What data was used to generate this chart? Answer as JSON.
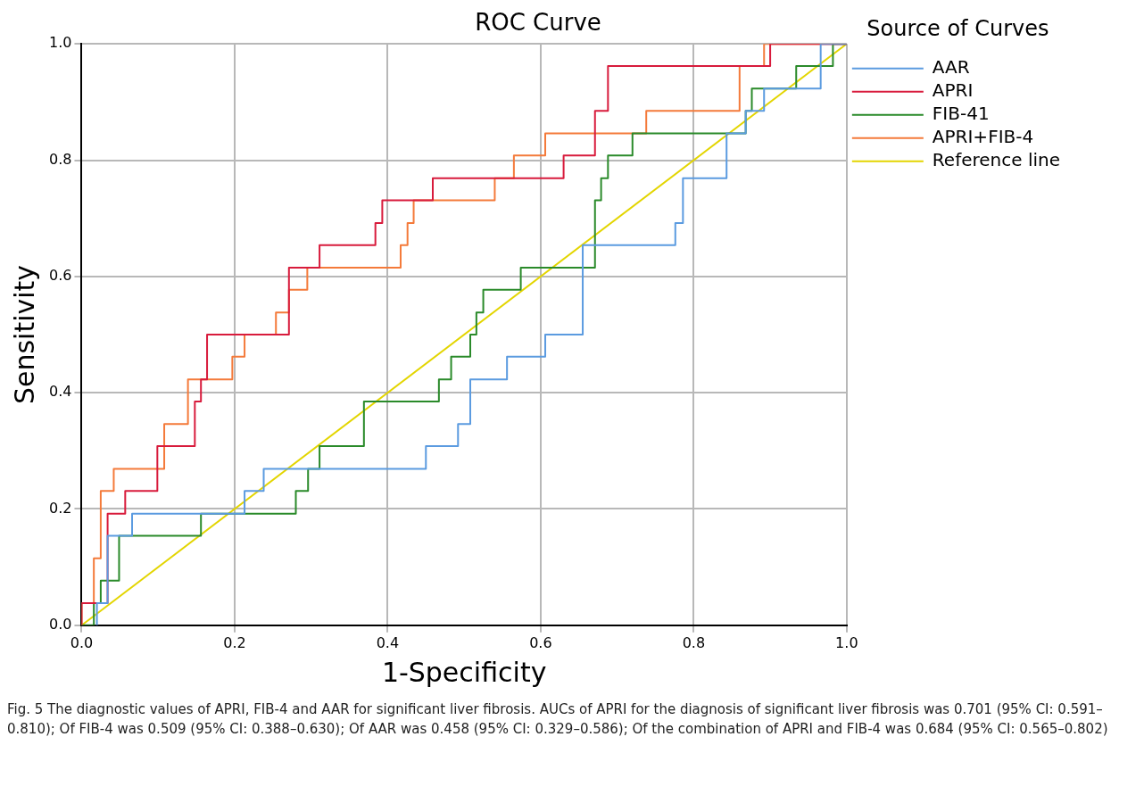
{
  "chart_data": {
    "type": "line",
    "title": "ROC Curve",
    "xlabel": "1-Specificity",
    "ylabel": "Sensitivity",
    "legend_title": "Source of Curves",
    "xlim": [
      0,
      1
    ],
    "ylim": [
      0,
      1
    ],
    "xticks": [
      {
        "value": 0,
        "label": "0.0"
      },
      {
        "value": 0.2,
        "label": "0.2"
      },
      {
        "value": 0.4,
        "label": "0.4"
      },
      {
        "value": 0.6,
        "label": "0.6"
      },
      {
        "value": 0.8,
        "label": "0.8"
      },
      {
        "value": 1,
        "label": "1.0"
      }
    ],
    "yticks": [
      {
        "value": 0,
        "label": "0.0"
      },
      {
        "value": 0.2,
        "label": "0.2"
      },
      {
        "value": 0.4,
        "label": "0.4"
      },
      {
        "value": 0.6,
        "label": "0.6"
      },
      {
        "value": 0.8,
        "label": "0.8"
      },
      {
        "value": 1,
        "label": "1.0"
      }
    ],
    "grid": true,
    "legend": "right",
    "series": [
      {
        "name": "AAR",
        "color": "#5b9be0",
        "x": [
          0.02,
          0.02,
          0.034,
          0.034,
          0.066,
          0.066,
          0.213,
          0.213,
          0.238,
          0.238,
          0.45,
          0.45,
          0.492,
          0.492,
          0.508,
          0.508,
          0.556,
          0.556,
          0.606,
          0.606,
          0.655,
          0.655,
          0.776,
          0.776,
          0.786,
          0.786,
          0.843,
          0.843,
          0.868,
          0.868,
          0.892,
          0.892,
          0.966,
          0.966,
          1
        ],
        "values": [
          0,
          0.038,
          0.038,
          0.154,
          0.154,
          0.192,
          0.192,
          0.231,
          0.231,
          0.269,
          0.269,
          0.308,
          0.308,
          0.346,
          0.346,
          0.423,
          0.423,
          0.462,
          0.462,
          0.5,
          0.5,
          0.654,
          0.654,
          0.692,
          0.692,
          0.769,
          0.769,
          0.846,
          0.846,
          0.885,
          0.885,
          0.923,
          0.923,
          1,
          1
        ]
      },
      {
        "name": "APRI",
        "color": "#d81b3c",
        "x": [
          0,
          0,
          0.034,
          0.034,
          0.057,
          0.057,
          0.099,
          0.099,
          0.148,
          0.148,
          0.156,
          0.156,
          0.164,
          0.164,
          0.271,
          0.271,
          0.311,
          0.311,
          0.384,
          0.384,
          0.393,
          0.393,
          0.459,
          0.459,
          0.63,
          0.63,
          0.671,
          0.671,
          0.688,
          0.688,
          0.9,
          0.9,
          1
        ],
        "values": [
          0,
          0.038,
          0.038,
          0.192,
          0.192,
          0.231,
          0.231,
          0.308,
          0.308,
          0.385,
          0.385,
          0.423,
          0.423,
          0.5,
          0.5,
          0.615,
          0.615,
          0.654,
          0.654,
          0.692,
          0.692,
          0.731,
          0.731,
          0.769,
          0.769,
          0.808,
          0.808,
          0.885,
          0.885,
          0.962,
          0.962,
          1,
          1
        ]
      },
      {
        "name": "FIB-41",
        "color": "#2a8a2a",
        "x": [
          0,
          0.016,
          0.016,
          0.025,
          0.025,
          0.049,
          0.049,
          0.156,
          0.156,
          0.28,
          0.28,
          0.296,
          0.296,
          0.311,
          0.311,
          0.369,
          0.369,
          0.467,
          0.467,
          0.483,
          0.483,
          0.508,
          0.508,
          0.516,
          0.516,
          0.525,
          0.525,
          0.574,
          0.574,
          0.671,
          0.671,
          0.679,
          0.679,
          0.688,
          0.688,
          0.72,
          0.72,
          0.868,
          0.868,
          0.876,
          0.876,
          0.934,
          0.934,
          0.982,
          0.982,
          1
        ],
        "values": [
          0,
          0,
          0.038,
          0.038,
          0.077,
          0.077,
          0.154,
          0.154,
          0.192,
          0.192,
          0.231,
          0.231,
          0.269,
          0.269,
          0.308,
          0.308,
          0.385,
          0.385,
          0.423,
          0.423,
          0.462,
          0.462,
          0.5,
          0.5,
          0.538,
          0.538,
          0.577,
          0.577,
          0.615,
          0.615,
          0.731,
          0.731,
          0.769,
          0.769,
          0.808,
          0.808,
          0.846,
          0.846,
          0.885,
          0.885,
          0.923,
          0.923,
          0.962,
          0.962,
          1,
          1
        ]
      },
      {
        "name": "APRI+FIB-4",
        "color": "#f47a3a",
        "x": [
          0,
          0,
          0.016,
          0.016,
          0.025,
          0.025,
          0.042,
          0.042,
          0.108,
          0.108,
          0.139,
          0.139,
          0.197,
          0.197,
          0.213,
          0.213,
          0.254,
          0.254,
          0.271,
          0.271,
          0.295,
          0.295,
          0.417,
          0.417,
          0.426,
          0.426,
          0.434,
          0.434,
          0.54,
          0.54,
          0.565,
          0.565,
          0.606,
          0.606,
          0.738,
          0.738,
          0.86,
          0.86,
          0.892,
          0.892,
          1
        ],
        "values": [
          0,
          0.038,
          0.038,
          0.115,
          0.115,
          0.231,
          0.231,
          0.269,
          0.269,
          0.346,
          0.346,
          0.423,
          0.423,
          0.462,
          0.462,
          0.5,
          0.5,
          0.538,
          0.538,
          0.577,
          0.577,
          0.615,
          0.615,
          0.654,
          0.654,
          0.692,
          0.692,
          0.731,
          0.731,
          0.769,
          0.769,
          0.808,
          0.808,
          0.846,
          0.846,
          0.885,
          0.885,
          0.962,
          0.962,
          1,
          1
        ]
      },
      {
        "name": "Reference line",
        "color": "#e3d500",
        "x": [
          0,
          1
        ],
        "values": [
          0,
          1
        ]
      }
    ],
    "annotations": [
      "Fig. 5 The diagnostic values of APRI, FIB-4 and AAR for significant liver fibrosis. AUCs of APRI for the diagnosis of significant liver fibrosis was 0.701 (95% CI: 0.591–0.810); Of FIB-4 was 0.509 (95% CI: 0.388–0.630); Of AAR was 0.458 (95% CI: 0.329–0.586); Of the combination of APRI and FIB-4 was 0.684 (95% CI: 0.565–0.802)"
    ]
  }
}
